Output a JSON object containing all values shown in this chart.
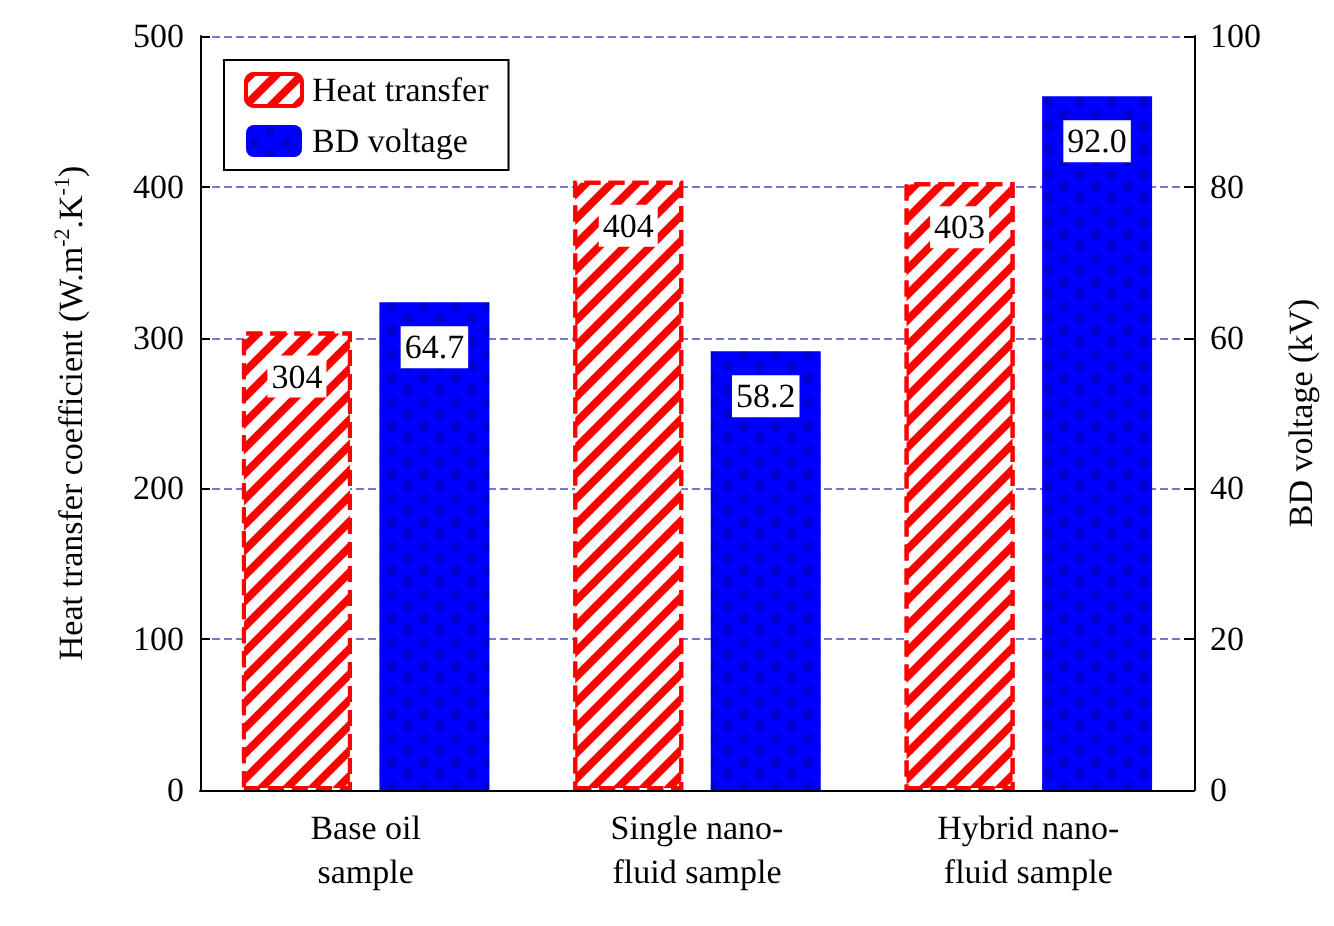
{
  "chart_data": {
    "type": "bar",
    "categories": [
      "Base oil\nsample",
      "Single nano-\nfluid sample",
      "Hybrid nano-\nfluid sample"
    ],
    "series": [
      {
        "name": "Heat transfer",
        "color": "#ff0000",
        "values": [
          304,
          404,
          403
        ],
        "value_labels": [
          "304",
          "404",
          "403"
        ]
      },
      {
        "name": "BD voltage",
        "color": "#0000ff",
        "values": [
          64.7,
          58.2,
          92.0
        ],
        "value_labels": [
          "64.7",
          "58.2",
          "92.0"
        ],
        "axis": "y2"
      }
    ],
    "ylabel": "Heat transfer coefficient (W.m$^{-2}$.K$^{-1}$)",
    "y2label": "BD voltage (kV)",
    "ylim": [
      0,
      500
    ],
    "yticks": [
      0,
      100,
      200,
      300,
      400,
      500
    ],
    "y2lim": [
      0,
      100
    ],
    "y2ticks": [
      0,
      20,
      40,
      60,
      80,
      100
    ],
    "grid": "y",
    "legend": "top left"
  }
}
